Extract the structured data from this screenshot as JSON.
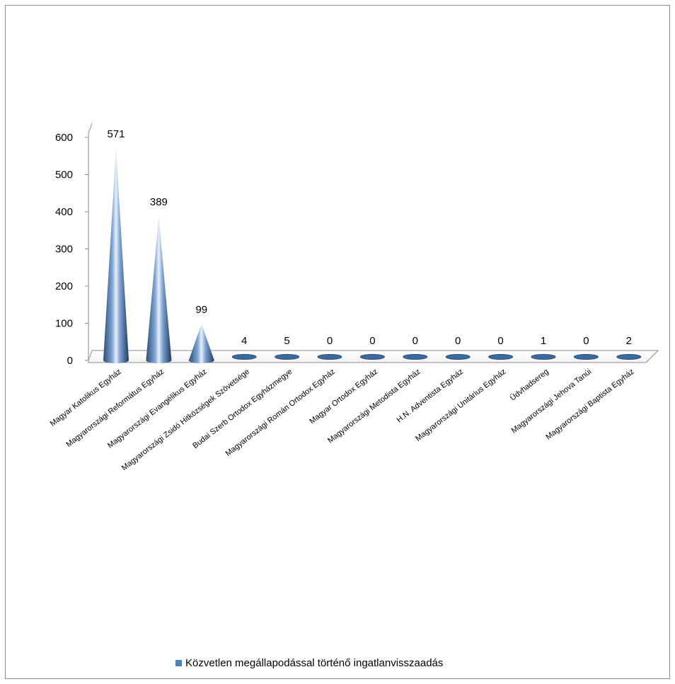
{
  "chart_data": {
    "type": "bar",
    "style": "3d-cone",
    "categories": [
      "Magyar Katolikus Egyház",
      "Magyarországi Református Egyház",
      "Magyarországi Evangélikus Egyház",
      "Magyarországi Zsidó Hitközségek Szövetsége",
      "Budai Szerb Ortodox Egyházmegye",
      "Magyarországi Román Ortodox Egyház",
      "Magyar Ortodox Egyház",
      "Magyarországi Metodista Egyház",
      "H.N. Adventista Egyház",
      "Magyarországi Unitárius Egyház",
      "Üdvhadsereg",
      "Magyarországi Jehova Tanúi",
      "Magyarországi Baptista Egyház"
    ],
    "series": [
      {
        "name": "Közvetlen megállapodással történő ingatlanvisszaadás",
        "values": [
          571,
          389,
          99,
          4,
          5,
          0,
          0,
          0,
          0,
          0,
          1,
          0,
          2
        ],
        "color": "#4f81bd"
      }
    ],
    "ylim": [
      0,
      600
    ],
    "yticks": [
      0,
      100,
      200,
      300,
      400,
      500,
      600
    ],
    "title": "",
    "xlabel": "",
    "ylabel": "",
    "grid": false,
    "legend_position": "bottom",
    "data_labels": true
  }
}
